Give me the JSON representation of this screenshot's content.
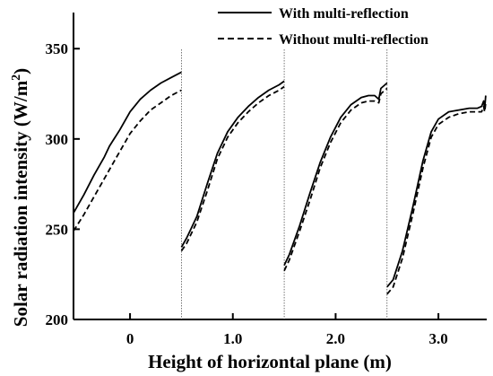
{
  "chart_data": {
    "type": "line",
    "xlabel": "Height of horizontal plane (m)",
    "ylabel": "Solar radiation intensity (W/m",
    "ylabel_sup": "2",
    "ylabel_close": ")",
    "ylim": [
      200,
      370
    ],
    "yticks": [
      200,
      250,
      300,
      350
    ],
    "xlim": [
      -0.55,
      3.47
    ],
    "xticks": [
      0,
      1.0,
      2.0,
      3.0
    ],
    "xtick_labels": [
      "0",
      "1.0",
      "2.0",
      "3.0"
    ],
    "segment_separators": [
      0.5,
      1.5,
      2.5
    ],
    "grid": false,
    "legend_position": "top-right",
    "series": [
      {
        "name": "With multi-reflection",
        "style": "solid",
        "color": "#000000",
        "segments": [
          [
            [
              -0.55,
              259
            ],
            [
              -0.45,
              269
            ],
            [
              -0.35,
              280
            ],
            [
              -0.25,
              290
            ],
            [
              -0.2,
              296
            ],
            [
              -0.1,
              305
            ],
            [
              0.0,
              315
            ],
            [
              0.1,
              322
            ],
            [
              0.2,
              327
            ],
            [
              0.3,
              331
            ],
            [
              0.4,
              334
            ],
            [
              0.5,
              337
            ]
          ],
          [
            [
              0.5,
              240
            ],
            [
              0.55,
              245
            ],
            [
              0.65,
              257
            ],
            [
              0.75,
              275
            ],
            [
              0.85,
              292
            ],
            [
              0.95,
              304
            ],
            [
              1.05,
              312
            ],
            [
              1.15,
              318
            ],
            [
              1.25,
              323
            ],
            [
              1.35,
              327
            ],
            [
              1.45,
              330
            ],
            [
              1.5,
              332
            ]
          ],
          [
            [
              1.5,
              230
            ],
            [
              1.55,
              236
            ],
            [
              1.65,
              252
            ],
            [
              1.75,
              270
            ],
            [
              1.85,
              287
            ],
            [
              1.95,
              301
            ],
            [
              2.05,
              312
            ],
            [
              2.15,
              319
            ],
            [
              2.25,
              323
            ],
            [
              2.32,
              324
            ],
            [
              2.38,
              324
            ],
            [
              2.42,
              322
            ],
            [
              2.44,
              328
            ],
            [
              2.5,
              331
            ]
          ],
          [
            [
              2.5,
              218
            ],
            [
              2.56,
              222
            ],
            [
              2.65,
              238
            ],
            [
              2.75,
              262
            ],
            [
              2.85,
              288
            ],
            [
              2.93,
              304
            ],
            [
              3.0,
              311
            ],
            [
              3.1,
              315
            ],
            [
              3.2,
              316
            ],
            [
              3.3,
              317
            ],
            [
              3.38,
              317
            ],
            [
              3.42,
              318
            ],
            [
              3.44,
              321
            ],
            [
              3.45,
              317
            ],
            [
              3.46,
              324
            ]
          ]
        ]
      },
      {
        "name": "Without multi-reflection",
        "style": "dashed",
        "color": "#000000",
        "segments": [
          [
            [
              -0.55,
              249
            ],
            [
              -0.45,
              258
            ],
            [
              -0.35,
              268
            ],
            [
              -0.25,
              278
            ],
            [
              -0.2,
              283
            ],
            [
              -0.1,
              293
            ],
            [
              0.0,
              303
            ],
            [
              0.1,
              310
            ],
            [
              0.2,
              316
            ],
            [
              0.3,
              320
            ],
            [
              0.4,
              324
            ],
            [
              0.5,
              327
            ]
          ],
          [
            [
              0.5,
              238
            ],
            [
              0.55,
              242
            ],
            [
              0.65,
              254
            ],
            [
              0.75,
              271
            ],
            [
              0.85,
              289
            ],
            [
              0.95,
              301
            ],
            [
              1.05,
              309
            ],
            [
              1.15,
              315
            ],
            [
              1.25,
              320
            ],
            [
              1.35,
              324
            ],
            [
              1.45,
              327
            ],
            [
              1.5,
              329
            ]
          ],
          [
            [
              1.5,
              227
            ],
            [
              1.55,
              233
            ],
            [
              1.65,
              249
            ],
            [
              1.75,
              266
            ],
            [
              1.85,
              284
            ],
            [
              1.95,
              298
            ],
            [
              2.05,
              309
            ],
            [
              2.15,
              316
            ],
            [
              2.25,
              320
            ],
            [
              2.32,
              321
            ],
            [
              2.38,
              321
            ],
            [
              2.42,
              320
            ],
            [
              2.44,
              325
            ],
            [
              2.5,
              328
            ]
          ],
          [
            [
              2.5,
              214
            ],
            [
              2.56,
              218
            ],
            [
              2.65,
              234
            ],
            [
              2.75,
              258
            ],
            [
              2.85,
              284
            ],
            [
              2.93,
              301
            ],
            [
              3.0,
              308
            ],
            [
              3.1,
              312
            ],
            [
              3.2,
              314
            ],
            [
              3.3,
              315
            ],
            [
              3.38,
              315
            ],
            [
              3.42,
              315
            ],
            [
              3.44,
              318
            ],
            [
              3.45,
              315
            ],
            [
              3.46,
              320
            ]
          ]
        ]
      }
    ]
  }
}
